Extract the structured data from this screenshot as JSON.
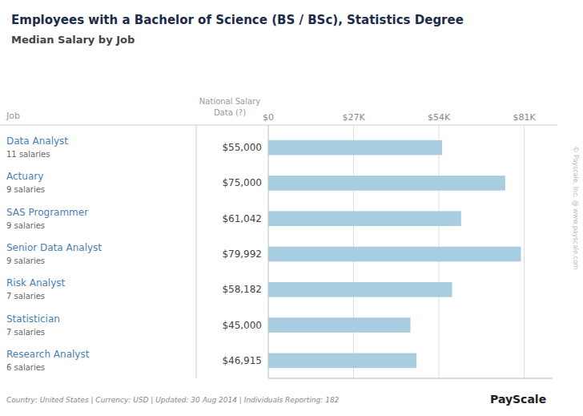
{
  "chart_data": {
    "type": "bar",
    "orientation": "horizontal",
    "title": "Employees with a Bachelor of Science (BS / BSc), Statistics Degree",
    "subtitle": "Median Salary by Job",
    "categories": [
      "Data Analyst",
      "Actuary",
      "SAS Programmer",
      "Senior Data Analyst",
      "Risk Analyst",
      "Statistician",
      "Research Analyst"
    ],
    "category_notes": [
      "11 salaries",
      "9 salaries",
      "9 salaries",
      "9 salaries",
      "7 salaries",
      "7 salaries",
      "6 salaries"
    ],
    "values": [
      55000,
      75000,
      61042,
      79992,
      58182,
      45000,
      46915
    ],
    "value_labels": [
      "$55,000",
      "$75,000",
      "$61,042",
      "$79,992",
      "$58,182",
      "$45,000",
      "$46,915"
    ],
    "data_labels": true,
    "color": "#a8cce0",
    "xlim": [
      0,
      90000
    ],
    "xticks": [
      {
        "value": 0,
        "label": "$0"
      },
      {
        "value": 27000,
        "label": "$27K"
      },
      {
        "value": 54000,
        "label": "$54K"
      },
      {
        "value": 81000,
        "label": "$81K"
      }
    ],
    "grid": true,
    "annotations": [
      "Job",
      "National Salary\nData (?)",
      "Country: United States  |  Currency: USD  |  Updated: 30 Aug 2014  |  Individuals Reporting: 182",
      "PayScale",
      "© Payscale, Inc. @ www.payscale.com"
    ]
  }
}
